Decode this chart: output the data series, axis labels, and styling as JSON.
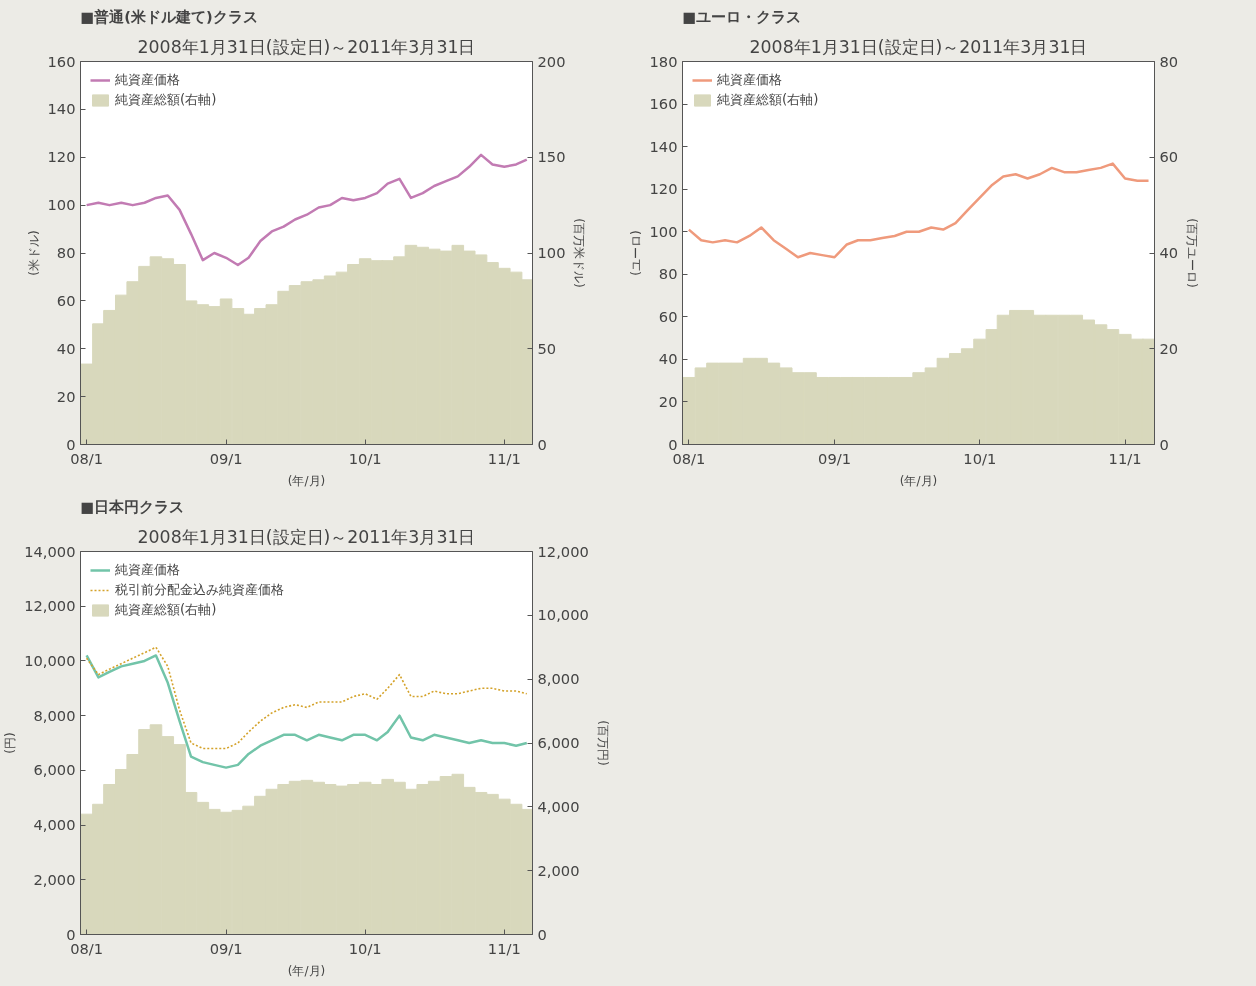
{
  "chart_data": [
    {
      "type": "line",
      "title": "■普通(米ドル建て)クラス",
      "subtitle": "2008年1月31日(設定日)～2011年3月31日",
      "ylabel": "(米ドル)",
      "y2label": "(百万米ドル)",
      "xlabel": "(年/月)",
      "x": [
        "2008-01",
        "2008-02",
        "2008-03",
        "2008-04",
        "2008-05",
        "2008-06",
        "2008-07",
        "2008-08",
        "2008-09",
        "2008-10",
        "2008-11",
        "2008-12",
        "2009-01",
        "2009-02",
        "2009-03",
        "2009-04",
        "2009-05",
        "2009-06",
        "2009-07",
        "2009-08",
        "2009-09",
        "2009-10",
        "2009-11",
        "2009-12",
        "2010-01",
        "2010-02",
        "2010-03",
        "2010-04",
        "2010-05",
        "2010-06",
        "2010-07",
        "2010-08",
        "2010-09",
        "2010-10",
        "2010-11",
        "2010-12",
        "2011-01",
        "2011-02",
        "2011-03"
      ],
      "xlim": [
        "2007-12-16",
        "2011-03-16"
      ],
      "xticks": [
        {
          "value": "2008-01",
          "label": "08/1"
        },
        {
          "value": "2009-01",
          "label": "09/1"
        },
        {
          "value": "2010-01",
          "label": "10/1"
        },
        {
          "value": "2011-01",
          "label": "11/1"
        }
      ],
      "ylim": [
        0,
        160
      ],
      "yticks": [
        0,
        20,
        40,
        60,
        80,
        100,
        120,
        140,
        160
      ],
      "y2lim": [
        0,
        200
      ],
      "y2ticks": [
        0,
        50,
        100,
        150,
        200
      ],
      "grid": false,
      "legend": "top left",
      "series": [
        {
          "name": "純資産価格",
          "color": "#c27bb3",
          "values": [
            100,
            101,
            100,
            101,
            100,
            101,
            103,
            104,
            98,
            88,
            77,
            80,
            78,
            75,
            78,
            85,
            89,
            91,
            94,
            96,
            99,
            100,
            103,
            102,
            103,
            105,
            109,
            111,
            103,
            105,
            108,
            110,
            112,
            116,
            121,
            117,
            116,
            117,
            119
          ]
        },
        {
          "name": "純資産総額(右軸)",
          "type": "bar",
          "axis": "y2",
          "color": "#d8d8bc",
          "values": [
            42,
            63,
            70,
            78,
            85,
            93,
            98,
            97,
            94,
            75,
            73,
            72,
            76,
            71,
            68,
            71,
            73,
            80,
            83,
            85,
            86,
            88,
            90,
            94,
            97,
            96,
            96,
            98,
            104,
            103,
            102,
            101,
            104,
            101,
            99,
            95,
            92,
            90,
            86
          ]
        }
      ]
    },
    {
      "type": "line",
      "title": "■ユーロ・クラス",
      "subtitle": "2008年1月31日(設定日)～2011年3月31日",
      "ylabel": "(ユーロ)",
      "y2label": "(百万ユーロ)",
      "xlabel": "(年/月)",
      "x": [
        "2008-01",
        "2008-02",
        "2008-03",
        "2008-04",
        "2008-05",
        "2008-06",
        "2008-07",
        "2008-08",
        "2008-09",
        "2008-10",
        "2008-11",
        "2008-12",
        "2009-01",
        "2009-02",
        "2009-03",
        "2009-04",
        "2009-05",
        "2009-06",
        "2009-07",
        "2009-08",
        "2009-09",
        "2009-10",
        "2009-11",
        "2009-12",
        "2010-01",
        "2010-02",
        "2010-03",
        "2010-04",
        "2010-05",
        "2010-06",
        "2010-07",
        "2010-08",
        "2010-09",
        "2010-10",
        "2010-11",
        "2010-12",
        "2011-01",
        "2011-02",
        "2011-03"
      ],
      "xlim": [
        "2007-12-16",
        "2011-03-16"
      ],
      "xticks": [
        {
          "value": "2008-01",
          "label": "08/1"
        },
        {
          "value": "2009-01",
          "label": "09/1"
        },
        {
          "value": "2010-01",
          "label": "10/1"
        },
        {
          "value": "2011-01",
          "label": "11/1"
        }
      ],
      "ylim": [
        0,
        180
      ],
      "yticks": [
        0,
        20,
        40,
        60,
        80,
        100,
        120,
        140,
        160,
        180
      ],
      "y2lim": [
        0,
        80
      ],
      "y2ticks": [
        0,
        20,
        40,
        60,
        80
      ],
      "grid": false,
      "legend": "top left",
      "series": [
        {
          "name": "純資産価格",
          "color": "#ef9a7c",
          "values": [
            101,
            96,
            95,
            96,
            95,
            98,
            102,
            96,
            92,
            88,
            90,
            89,
            88,
            94,
            96,
            96,
            97,
            98,
            100,
            100,
            102,
            101,
            104,
            110,
            116,
            122,
            126,
            127,
            125,
            127,
            130,
            128,
            128,
            129,
            130,
            132,
            125,
            124,
            124
          ]
        },
        {
          "name": "純資産総額(右軸)",
          "type": "bar",
          "axis": "y2",
          "color": "#d8d8bc",
          "values": [
            14,
            16,
            17,
            17,
            17,
            18,
            18,
            17,
            16,
            15,
            15,
            14,
            14,
            14,
            14,
            14,
            14,
            14,
            14,
            15,
            16,
            18,
            19,
            20,
            22,
            24,
            27,
            28,
            28,
            27,
            27,
            27,
            27,
            26,
            25,
            24,
            23,
            22,
            22
          ]
        }
      ]
    },
    {
      "type": "line",
      "title": "■日本円クラス",
      "subtitle": "2008年1月31日(設定日)～2011年3月31日",
      "ylabel": "(円)",
      "y2label": "(百万円)",
      "xlabel": "(年/月)",
      "x": [
        "2008-01",
        "2008-02",
        "2008-03",
        "2008-04",
        "2008-05",
        "2008-06",
        "2008-07",
        "2008-08",
        "2008-09",
        "2008-10",
        "2008-11",
        "2008-12",
        "2009-01",
        "2009-02",
        "2009-03",
        "2009-04",
        "2009-05",
        "2009-06",
        "2009-07",
        "2009-08",
        "2009-09",
        "2009-10",
        "2009-11",
        "2009-12",
        "2010-01",
        "2010-02",
        "2010-03",
        "2010-04",
        "2010-05",
        "2010-06",
        "2010-07",
        "2010-08",
        "2010-09",
        "2010-10",
        "2010-11",
        "2010-12",
        "2011-01",
        "2011-02",
        "2011-03"
      ],
      "xlim": [
        "2007-12-16",
        "2011-03-16"
      ],
      "xticks": [
        {
          "value": "2008-01",
          "label": "08/1"
        },
        {
          "value": "2009-01",
          "label": "09/1"
        },
        {
          "value": "2010-01",
          "label": "10/1"
        },
        {
          "value": "2011-01",
          "label": "11/1"
        }
      ],
      "ylim": [
        0,
        14000
      ],
      "yticks": [
        0,
        {
          "value": 2000,
          "label": "2,000"
        },
        {
          "value": 4000,
          "label": "4,000"
        },
        {
          "value": 6000,
          "label": "6,000"
        },
        {
          "value": 8000,
          "label": "8,000"
        },
        {
          "value": 10000,
          "label": "10,000"
        },
        {
          "value": 12000,
          "label": "12,000"
        },
        {
          "value": 14000,
          "label": "14,000"
        }
      ],
      "y2lim": [
        0,
        12000
      ],
      "y2ticks": [
        0,
        {
          "value": 2000,
          "label": "2,000"
        },
        {
          "value": 4000,
          "label": "4,000"
        },
        {
          "value": 6000,
          "label": "6,000"
        },
        {
          "value": 8000,
          "label": "8,000"
        },
        {
          "value": 10000,
          "label": "10,000"
        },
        {
          "value": 12000,
          "label": "12,000"
        }
      ],
      "grid": false,
      "legend": "top left",
      "series": [
        {
          "name": "純資産価格",
          "color": "#72c4a9",
          "values": [
            10200,
            9400,
            9600,
            9800,
            9900,
            10000,
            10200,
            9200,
            7800,
            6500,
            6300,
            6200,
            6100,
            6200,
            6600,
            6900,
            7100,
            7300,
            7300,
            7100,
            7300,
            7200,
            7100,
            7300,
            7300,
            7100,
            7400,
            8000,
            7200,
            7100,
            7300,
            7200,
            7100,
            7000,
            7100,
            7000,
            7000,
            6900,
            7000
          ]
        },
        {
          "name": "税引前分配金込み純資産価格",
          "line_style": "dotted",
          "color": "#d4a22a",
          "values": [
            10100,
            9500,
            9700,
            9900,
            10100,
            10300,
            10500,
            9800,
            8200,
            7000,
            6800,
            6800,
            6800,
            7000,
            7400,
            7800,
            8100,
            8300,
            8400,
            8300,
            8500,
            8500,
            8500,
            8700,
            8800,
            8600,
            9000,
            9500,
            8700,
            8700,
            8900,
            8800,
            8800,
            8900,
            9000,
            9000,
            8900,
            8900,
            8800
          ]
        },
        {
          "name": "純資産総額(右軸)",
          "type": "bar",
          "axis": "y2",
          "color": "#d8d8bc",
          "values": [
            3770,
            4080,
            4700,
            5170,
            5640,
            6420,
            6570,
            6200,
            5950,
            4450,
            4140,
            3920,
            3830,
            3890,
            4020,
            4330,
            4550,
            4700,
            4800,
            4830,
            4770,
            4700,
            4650,
            4700,
            4770,
            4700,
            4860,
            4770,
            4550,
            4700,
            4800,
            4950,
            5020,
            4610,
            4450,
            4390,
            4240,
            4080,
            3920
          ]
        }
      ]
    }
  ]
}
